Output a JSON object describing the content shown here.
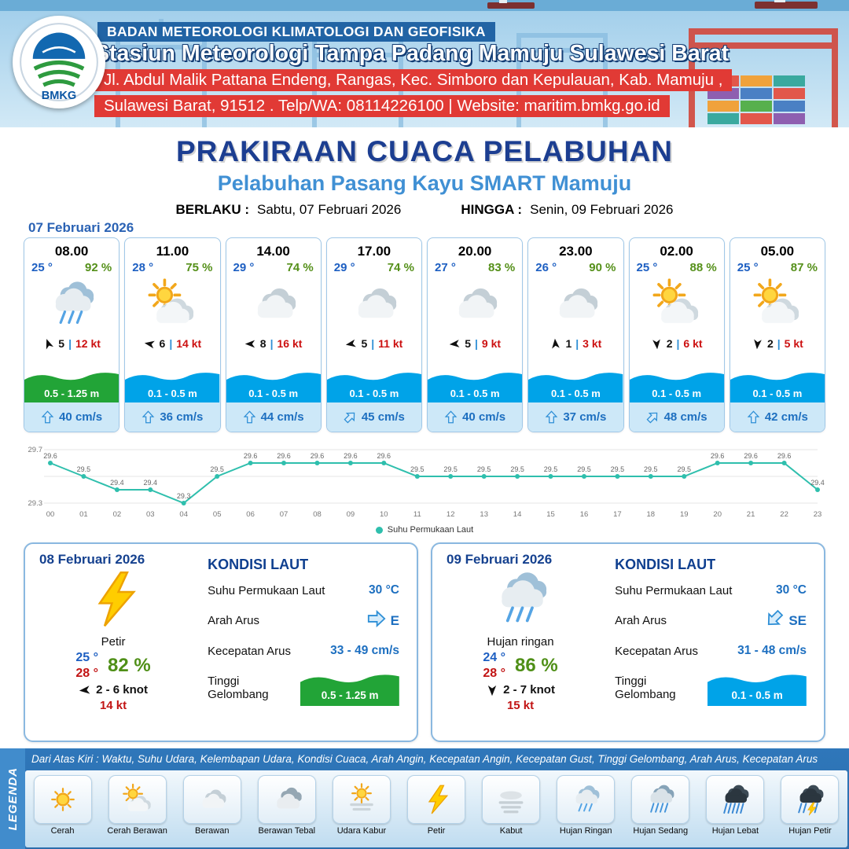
{
  "header": {
    "logo_text": "BMKG",
    "agency": "BADAN METEOROLOGI KLIMATOLOGI DAN GEOFISIKA",
    "station": "Stasiun Meteorologi Tampa Padang Mamuju Sulawesi Barat",
    "address_line1": "Jl. Abdul Malik Pattana Endeng, Rangas, Kec. Simboro dan Kepulauan, Kab. Mamuju ,",
    "address_line2": "Sulawesi Barat, 91512 . Telp/WA: 08114226100 | Website: maritim.bmkg.go.id"
  },
  "title": {
    "main": "PRAKIRAAN CUACA PELABUHAN",
    "subtitle": "Pelabuhan Pasang Kayu SMART Mamuju",
    "valid_from_label": "BERLAKU :",
    "valid_from": "Sabtu, 07 Februari 2026",
    "valid_to_label": "HINGGA :",
    "valid_to": "Senin, 09 Februari 2026"
  },
  "forecast_date": "07 Februari 2026",
  "colors": {
    "accent_blue": "#1d5fc2",
    "humidity_green": "#55901a",
    "speed_red": "#cc1111",
    "wave_blue": "#00a3e8",
    "wave_green": "#22a437",
    "navy": "#15418f",
    "chart_teal": "#2fbfad"
  },
  "hourly": [
    {
      "time": "08.00",
      "temp": "25 °",
      "humidity": "92 %",
      "icon": "hujan-ringan",
      "wind_dir_deg": -20,
      "wind_val": "5",
      "wind_speed": "12 kt",
      "wave": "0.5 - 1.25 m",
      "wave_color": "#22a437",
      "current": "40 cm/s",
      "current_dir_deg": 0
    },
    {
      "time": "11.00",
      "temp": "28 °",
      "humidity": "75 %",
      "icon": "cerah-berawan",
      "wind_dir_deg": -80,
      "wind_val": "6",
      "wind_speed": "14 kt",
      "wave": "0.1 - 0.5 m",
      "wave_color": "#00a3e8",
      "current": "36 cm/s",
      "current_dir_deg": 0
    },
    {
      "time": "14.00",
      "temp": "29 °",
      "humidity": "74 %",
      "icon": "berawan",
      "wind_dir_deg": -90,
      "wind_val": "8",
      "wind_speed": "16 kt",
      "wave": "0.1 - 0.5 m",
      "wave_color": "#00a3e8",
      "current": "44 cm/s",
      "current_dir_deg": 0
    },
    {
      "time": "17.00",
      "temp": "29 °",
      "humidity": "74 %",
      "icon": "berawan",
      "wind_dir_deg": -100,
      "wind_val": "5",
      "wind_speed": "11 kt",
      "wave": "0.1 - 0.5 m",
      "wave_color": "#00a3e8",
      "current": "45 cm/s",
      "current_dir_deg": 45
    },
    {
      "time": "20.00",
      "temp": "27 °",
      "humidity": "83 %",
      "icon": "berawan",
      "wind_dir_deg": -95,
      "wind_val": "5",
      "wind_speed": "9 kt",
      "wave": "0.1 - 0.5 m",
      "wave_color": "#00a3e8",
      "current": "40 cm/s",
      "current_dir_deg": 0
    },
    {
      "time": "23.00",
      "temp": "26 °",
      "humidity": "90 %",
      "icon": "berawan",
      "wind_dir_deg": -5,
      "wind_val": "1",
      "wind_speed": "3 kt",
      "wave": "0.1 - 0.5 m",
      "wave_color": "#00a3e8",
      "current": "37 cm/s",
      "current_dir_deg": 0
    },
    {
      "time": "02.00",
      "temp": "25 °",
      "humidity": "88 %",
      "icon": "cerah-berawan",
      "wind_dir_deg": 175,
      "wind_val": "2",
      "wind_speed": "6 kt",
      "wave": "0.1 - 0.5 m",
      "wave_color": "#00a3e8",
      "current": "48 cm/s",
      "current_dir_deg": 45
    },
    {
      "time": "05.00",
      "temp": "25 °",
      "humidity": "87 %",
      "icon": "cerah-berawan",
      "wind_dir_deg": 185,
      "wind_val": "2",
      "wind_speed": "5 kt",
      "wave": "0.1 - 0.5 m",
      "wave_color": "#00a3e8",
      "current": "42 cm/s",
      "current_dir_deg": 0
    }
  ],
  "chart_data": {
    "type": "line",
    "series_name": "Suhu Permukaan Laut",
    "x": [
      "00",
      "01",
      "02",
      "03",
      "04",
      "05",
      "06",
      "07",
      "08",
      "09",
      "10",
      "11",
      "12",
      "13",
      "14",
      "15",
      "16",
      "17",
      "18",
      "19",
      "20",
      "21",
      "22",
      "23"
    ],
    "values": [
      29.6,
      29.5,
      29.4,
      29.4,
      29.3,
      29.5,
      29.6,
      29.6,
      29.6,
      29.6,
      29.6,
      29.5,
      29.5,
      29.5,
      29.5,
      29.5,
      29.5,
      29.5,
      29.5,
      29.5,
      29.6,
      29.6,
      29.6,
      29.4
    ],
    "ylim": [
      29.3,
      29.7
    ],
    "line_color": "#2fbfad",
    "legend_position": "bottom"
  },
  "days": [
    {
      "date": "08 Februari 2026",
      "icon": "petir",
      "condition": "Petir",
      "temp_day": "25 °",
      "temp_night": "28 °",
      "humidity": "82 %",
      "wind_dir_deg": -95,
      "wind_range": "2 - 6 knot",
      "gust": "14 kt",
      "sea": {
        "title": "KONDISI LAUT",
        "sst_label": "Suhu Permukaan Laut",
        "sst": "30 °C",
        "dir_label": "Arah Arus",
        "dir": "E",
        "dir_deg": 90,
        "speed_label": "Kecepatan Arus",
        "speed": "33 - 49 cm/s",
        "wave_label": "Tinggi Gelombang",
        "wave": "0.5 - 1.25 m",
        "wave_color": "#22a437"
      }
    },
    {
      "date": "09 Februari 2026",
      "icon": "hujan-ringan",
      "condition": "Hujan ringan",
      "temp_day": "24 °",
      "temp_night": "28 °",
      "humidity": "86 %",
      "wind_dir_deg": 180,
      "wind_range": "2 - 7 knot",
      "gust": "15 kt",
      "sea": {
        "title": "KONDISI LAUT",
        "sst_label": "Suhu Permukaan Laut",
        "sst": "30 °C",
        "dir_label": "Arah Arus",
        "dir": "SE",
        "dir_deg": 225,
        "speed_label": "Kecepatan Arus",
        "speed": "31 - 48 cm/s",
        "wave_label": "Tinggi Gelombang",
        "wave": "0.1 - 0.5 m",
        "wave_color": "#00a3e8"
      }
    }
  ],
  "legend": {
    "title": "LEGENDA",
    "note": "Dari Atas Kiri : Waktu, Suhu Udara, Kelembapan Udara, Kondisi Cuaca, Arah Angin, Kecepatan Angin, Kecepatan Gust, Tinggi Gelombang, Arah Arus, Kecepatan Arus",
    "items": [
      {
        "label": "Cerah",
        "icon": "cerah"
      },
      {
        "label": "Cerah Berawan",
        "icon": "cerah-berawan"
      },
      {
        "label": "Berawan",
        "icon": "berawan"
      },
      {
        "label": "Berawan Tebal",
        "icon": "berawan-tebal"
      },
      {
        "label": "Udara Kabur",
        "icon": "udara-kabur"
      },
      {
        "label": "Petir",
        "icon": "petir"
      },
      {
        "label": "Kabut",
        "icon": "kabut"
      },
      {
        "label": "Hujan Ringan",
        "icon": "hujan-ringan"
      },
      {
        "label": "Hujan Sedang",
        "icon": "hujan-sedang"
      },
      {
        "label": "Hujan Lebat",
        "icon": "hujan-lebat"
      },
      {
        "label": "Hujan Petir",
        "icon": "hujan-petir"
      }
    ]
  }
}
